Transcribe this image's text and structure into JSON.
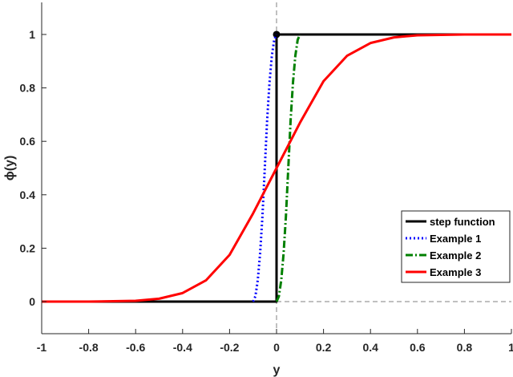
{
  "chart_data": {
    "type": "line",
    "xlabel": "y",
    "ylabel": "ϕ(y)",
    "xlim": [
      -1,
      1
    ],
    "ylim": [
      -0.12,
      1.12
    ],
    "xticks": [
      -1,
      -0.8,
      -0.6,
      -0.4,
      -0.2,
      0,
      0.2,
      0.4,
      0.6,
      0.8,
      1
    ],
    "xtick_labels": [
      "-1",
      "-0.8",
      "-0.6",
      "-0.4",
      "-0.2",
      "0",
      "0.2",
      "0.4",
      "0.6",
      "0.8",
      "1"
    ],
    "yticks": [
      0,
      0.2,
      0.4,
      0.6,
      0.8,
      1
    ],
    "ytick_labels": [
      "0",
      "0.2",
      "0.4",
      "0.6",
      "0.8",
      "1"
    ],
    "grid": false,
    "legend_position": "lower-right",
    "reference_lines": [
      {
        "orientation": "vertical",
        "value": 0,
        "style": "dashed",
        "color": "#808080"
      },
      {
        "orientation": "horizontal",
        "value": 0,
        "from_x": 0,
        "style": "dashed",
        "color": "#808080"
      }
    ],
    "series": [
      {
        "name": "step function",
        "color": "#000000",
        "style": "solid",
        "x": [
          -1,
          0,
          0,
          1
        ],
        "y": [
          0,
          0,
          1,
          1
        ],
        "marker_at": [
          0,
          1
        ]
      },
      {
        "name": "Example 1",
        "color": "#0000ff",
        "style": "dotted",
        "x": [
          -0.1,
          -0.09,
          -0.08,
          -0.07,
          -0.06,
          -0.05,
          -0.04,
          -0.03,
          -0.02,
          -0.01,
          0
        ],
        "y": [
          0,
          0.02,
          0.08,
          0.18,
          0.32,
          0.5,
          0.68,
          0.82,
          0.92,
          0.98,
          1
        ]
      },
      {
        "name": "Example 2",
        "color": "#008000",
        "style": "dashdot",
        "x": [
          0,
          0.01,
          0.02,
          0.03,
          0.04,
          0.05,
          0.06,
          0.07,
          0.08,
          0.09,
          0.1
        ],
        "y": [
          0,
          0.02,
          0.08,
          0.18,
          0.32,
          0.5,
          0.68,
          0.82,
          0.92,
          0.98,
          1
        ]
      },
      {
        "name": "Example 3",
        "color": "#ff0000",
        "style": "solid",
        "x": [
          -1,
          -0.8,
          -0.6,
          -0.5,
          -0.4,
          -0.3,
          -0.2,
          -0.1,
          0,
          0.1,
          0.2,
          0.3,
          0.4,
          0.5,
          0.6,
          0.8,
          1
        ],
        "y": [
          0,
          0.0,
          0.003,
          0.011,
          0.032,
          0.08,
          0.175,
          0.33,
          0.5,
          0.67,
          0.825,
          0.92,
          0.968,
          0.989,
          0.997,
          1.0,
          1
        ]
      }
    ]
  }
}
